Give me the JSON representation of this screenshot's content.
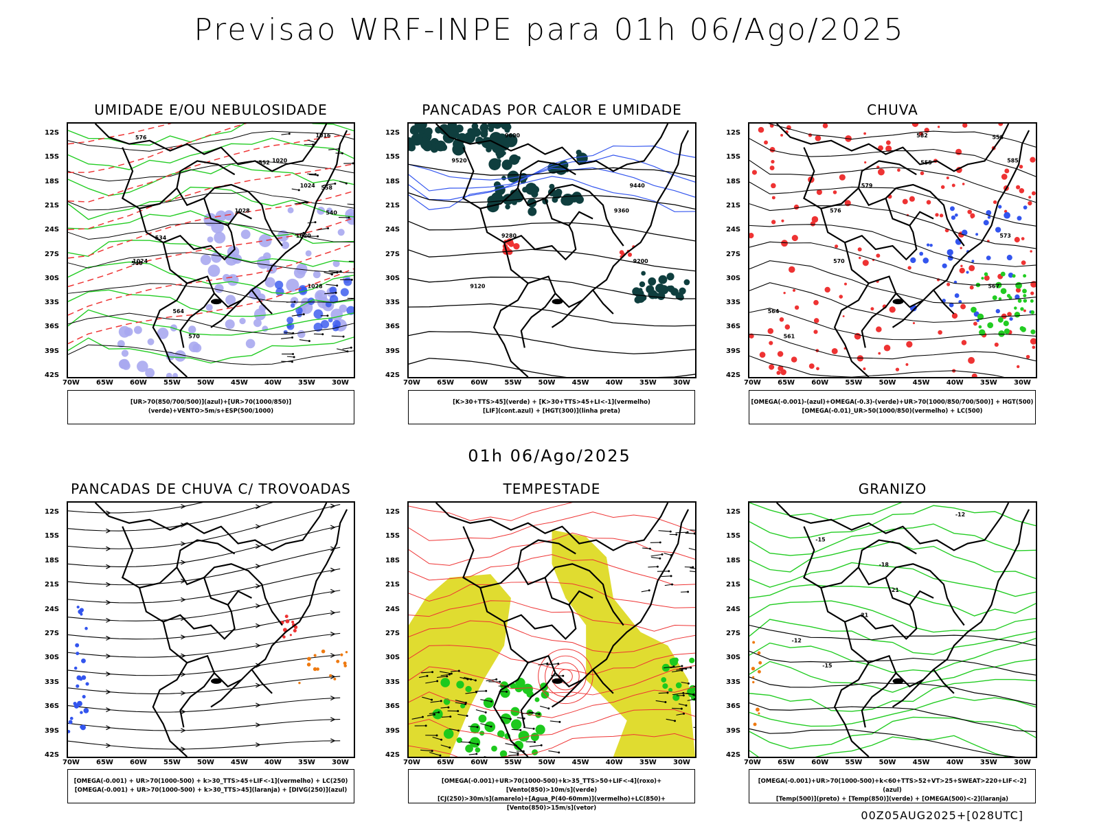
{
  "title": "Previsao WRF-INPE  para 01h 06/Ago/2025",
  "subtitle": "01h 06/Ago/2025",
  "footer": "00Z05AUG2025+[028UTC]",
  "axes": {
    "lat_labels": [
      "12S",
      "15S",
      "18S",
      "21S",
      "24S",
      "27S",
      "30S",
      "33S",
      "36S",
      "39S",
      "42S"
    ],
    "lon_labels": [
      "70W",
      "65W",
      "60W",
      "55W",
      "50W",
      "45W",
      "40W",
      "35W",
      "30W"
    ]
  },
  "colors": {
    "green": "#22cc22",
    "red": "#ee3333",
    "blue": "#3355ee",
    "lavender": "#a8a8f0",
    "yellow": "#e0dc30",
    "teal": "#0f3e3e",
    "orange": "#ee7a11"
  },
  "panels": [
    {
      "id": "umidade",
      "title": "UMIDADE E/OU NEBULOSIDADE",
      "legend": [
        "[UR>70(850/700/500)](azul)+[UR>70(1000/850)](verde)+VENTO>5m/s+ESP(500/1000)"
      ],
      "contour_labels": [
        "1016",
        "1020",
        "1024",
        "1028",
        "1020",
        "1024",
        "1028",
        "564",
        "570",
        "576",
        "552",
        "558",
        "540",
        "534",
        "546"
      ]
    },
    {
      "id": "pancadas-calor",
      "title": "PANCADAS POR CALOR E UMIDADE",
      "legend": [
        "[K>30+TTS>45](verde) + [K>30+TTS>45+LI<-1](vermelho)",
        "[LIF](cont.azul) + [HGT(300)](linha preta)"
      ],
      "contour_labels": [
        "9600",
        "9520",
        "9440",
        "9360",
        "9280",
        "9200",
        "9120"
      ]
    },
    {
      "id": "chuva",
      "title": "CHUVA",
      "legend": [
        "[OMEGA(-0.001)-(azul)+OMEGA(-0.3)-(verde)+UR>70(1000/850/700/500)] + HGT(500)",
        "[OMEGA(-0.01)_UR>50(1000/850)(vermelho) + LC(500)"
      ],
      "contour_labels": [
        "582",
        "585",
        "579",
        "576",
        "573",
        "570",
        "567",
        "564",
        "561",
        "558",
        "555"
      ]
    },
    {
      "id": "trovoadas",
      "title": "PANCADAS DE CHUVA C/ TROVOADAS",
      "legend": [
        "[OMEGA(-0.001) + UR>70(1000-500) + k>30_TTS>45+LIF<-1](vermelho) + LC(250)",
        "[OMEGA(-0.001) + UR>70(1000-500) + k>30_TTS>45](laranja) + [DIVG(250)](azul)"
      ],
      "contour_labels": []
    },
    {
      "id": "tempestade",
      "title": "TEMPESTADE",
      "legend": [
        "[OMEGA(-0.001)+UR>70(1000-500)+k>35_TTS>50+LIF<-4](roxo)+[Vento(850)>10m/s](verde)",
        "[CJ(250)>30m/s](amarelo)+[Agua_P(40-60mm)](vermelho)+LC(850)+[Vento(850)>15m/s](vetor)"
      ],
      "contour_labels": []
    },
    {
      "id": "granizo",
      "title": "GRANIZO",
      "legend": [
        "[OMEGA(-0.001)+UR>70(1000-500)+k<60+TTS>52+VT>25+SWEAT>220+LIF<-2](azul)",
        "[Temp(500)](preto) + [Temp(850)](verde) + [OMEGA(500)<-2](laranja)"
      ],
      "contour_labels": [
        "-12",
        "-15",
        "-18",
        "-21",
        "-21",
        "-12",
        "-15"
      ]
    }
  ]
}
